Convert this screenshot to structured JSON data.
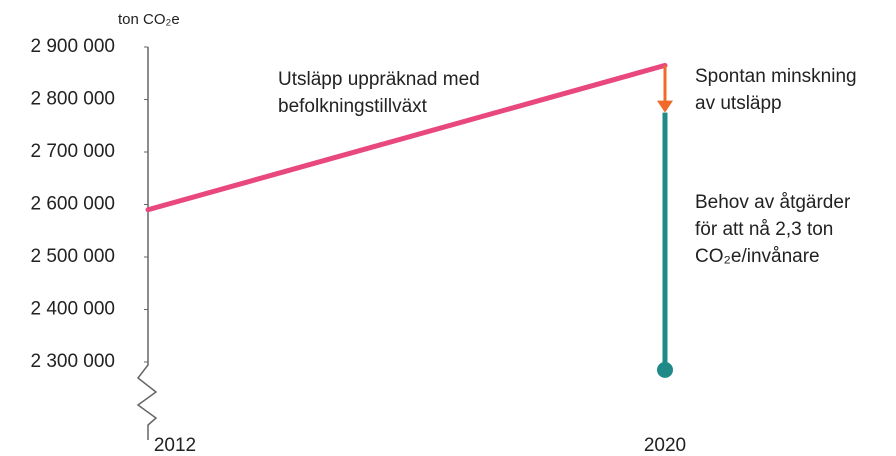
{
  "chart_data": {
    "type": "line",
    "y_label": "ton CO₂e",
    "xlim": [
      2012,
      2020
    ],
    "xticks": [
      2012,
      2020
    ],
    "ylim": [
      2150000,
      2900000
    ],
    "yticks": [
      {
        "value": 2300000,
        "label": "2 300 000"
      },
      {
        "value": 2400000,
        "label": "2 400 000"
      },
      {
        "value": 2500000,
        "label": "2 500 000"
      },
      {
        "value": 2600000,
        "label": "2 600 000"
      },
      {
        "value": 2700000,
        "label": "2 700 000"
      },
      {
        "value": 2800000,
        "label": "2 800 000"
      },
      {
        "value": 2900000,
        "label": "2 900 000"
      }
    ],
    "series": [
      {
        "color": "#e9487e",
        "x": [
          2012,
          2020
        ],
        "values": [
          2590000,
          2865000
        ]
      }
    ],
    "reduction": {
      "color": "#f06a2a",
      "x": 2020,
      "values": [
        2865000,
        2775000
      ]
    },
    "measures": {
      "color": "#1f8a88",
      "x": 2020,
      "values": [
        2775000,
        2285000
      ]
    },
    "annotations": [
      {
        "lines": [
          "Utsläpp uppräknad med",
          "befolkningstillväxt"
        ]
      },
      {
        "lines": [
          "Spontan minskning",
          "av utsläpp"
        ]
      },
      {
        "lines": [
          "Behov av åtgärder",
          "för att nå 2,3 ton",
          "CO₂e/invånare"
        ]
      }
    ]
  }
}
